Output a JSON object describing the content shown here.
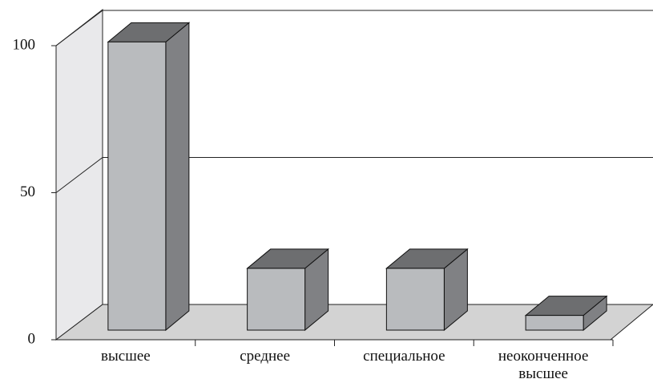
{
  "chart_data": {
    "type": "bar3d",
    "categories": [
      "высшее",
      "среднее",
      "специальное",
      "неоконченное высшее"
    ],
    "values": [
      98,
      21,
      21,
      5
    ],
    "color": "#b9bbbe",
    "ylim": [
      0,
      100
    ],
    "yticks": [
      0,
      50,
      100
    ],
    "grid": true
  }
}
